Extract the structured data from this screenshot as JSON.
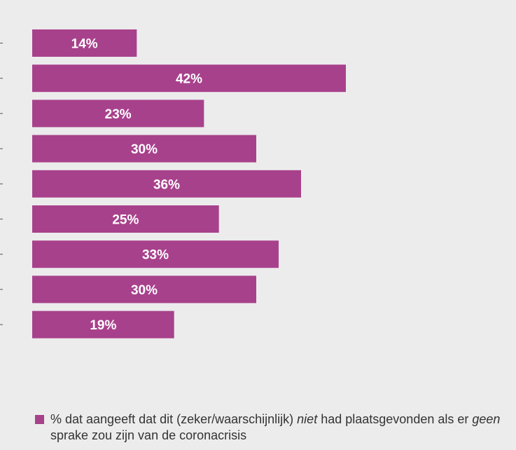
{
  "chart_data": {
    "type": "bar",
    "orientation": "horizontal",
    "values": [
      14,
      42,
      23,
      30,
      36,
      25,
      33,
      30,
      19
    ],
    "data_labels": [
      "14%",
      "42%",
      "23%",
      "30%",
      "36%",
      "25%",
      "33%",
      "30%",
      "19%"
    ],
    "xlim": [
      0,
      42
    ],
    "bar_color": "#a8418c",
    "grid": false,
    "legend_position": "bottom-left"
  },
  "legend": {
    "swatch_color": "#a8418c",
    "text_part1": "% dat aangeeft dat dit (zeker/waarschijnlijk) ",
    "text_italic1": "niet",
    "text_part2": " had plaatsgevonden als er ",
    "text_italic2": "geen",
    "text_part3": " sprake zou zijn van de coronacrisis"
  }
}
